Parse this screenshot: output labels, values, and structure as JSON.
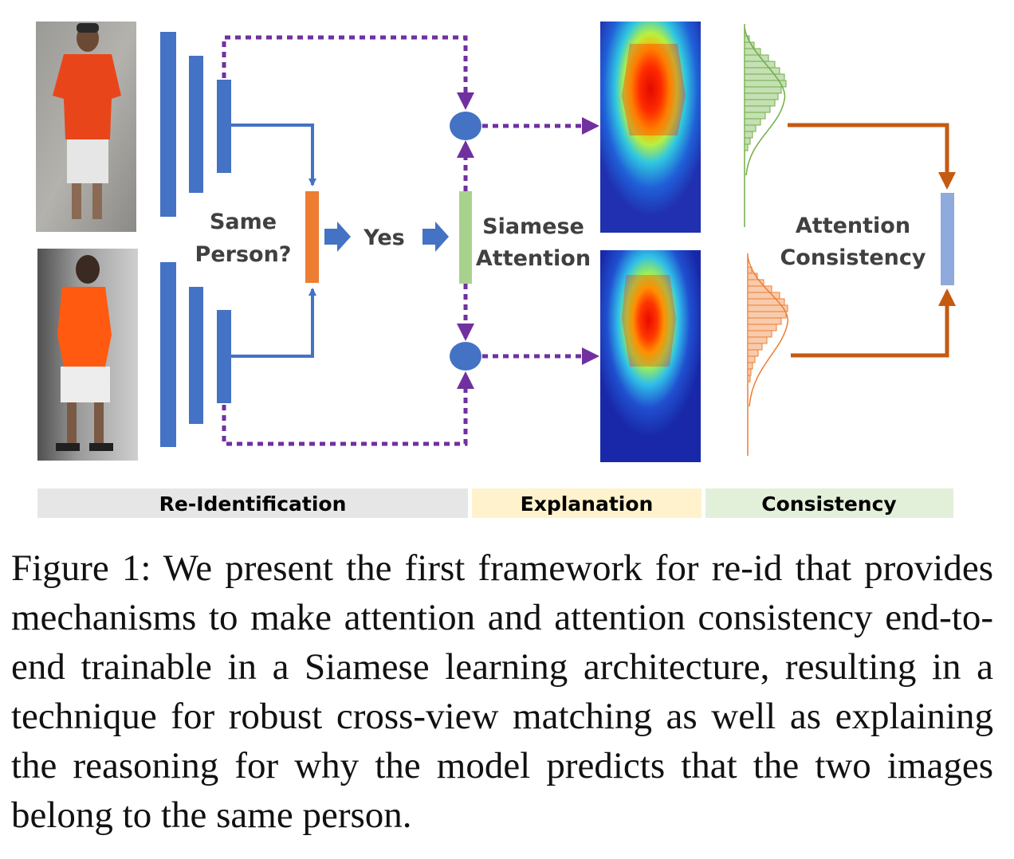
{
  "diagram": {
    "same_person_line1": "Same",
    "same_person_line2": "Person?",
    "yes": "Yes",
    "siamese_line1": "Siamese",
    "siamese_line2": "Attention",
    "consistency_line1": "Attention",
    "consistency_line2": "Consistency"
  },
  "bands": {
    "reid": "Re-Identification",
    "explanation": "Explanation",
    "consistency": "Consistency"
  },
  "colors": {
    "blue": "#4472c4",
    "orange": "#ed7d31",
    "green": "#a9d18e",
    "purple": "#7030a0",
    "dark_orange": "#c55a11",
    "light_blue": "#8faadc",
    "band_gray": "#e7e6e6",
    "band_yellow": "#fff2cc",
    "band_green": "#e2f0d9"
  },
  "caption": "Figure 1: We present the first framework for re-id that pro­vides mechanisms to make attention and attention consis­tency end-to-end trainable in a Siamese learning architec­ture, resulting in a technique for robust cross-view match­ing as well as explaining the reasoning for why the model predicts that the two images belong to the same person."
}
